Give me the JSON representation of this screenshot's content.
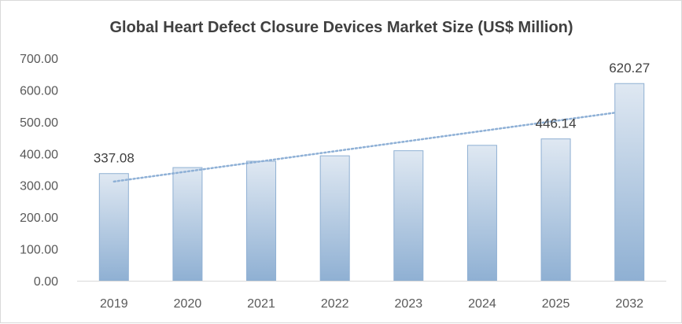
{
  "chart_data": {
    "type": "bar",
    "title": "Global Heart Defect Closure Devices Market Size (US$ Million)",
    "categories": [
      "2019",
      "2020",
      "2021",
      "2022",
      "2023",
      "2024",
      "2025",
      "2032"
    ],
    "values": [
      337.08,
      356,
      376,
      393,
      409,
      426,
      446.14,
      620.27
    ],
    "data_labels": [
      {
        "index": 0,
        "text": "337.08"
      },
      {
        "index": 6,
        "text": "446.14"
      },
      {
        "index": 7,
        "text": "620.27"
      }
    ],
    "y_ticks": [
      "0.00",
      "100.00",
      "200.00",
      "300.00",
      "400.00",
      "500.00",
      "600.00",
      "700.00"
    ],
    "ylim": [
      0,
      700
    ],
    "xlabel": "",
    "ylabel": "",
    "gridlines": false,
    "legend": "none",
    "trendline": {
      "type": "linear",
      "style": "dotted",
      "start_value": 312,
      "end_value": 528
    },
    "colors": {
      "bar_top": "#dfe8f2",
      "bar_bottom": "#8fb0d3",
      "bar_border": "#8fb0d3",
      "trendline": "#8eb0d6",
      "axis": "#d9d9d9"
    }
  }
}
